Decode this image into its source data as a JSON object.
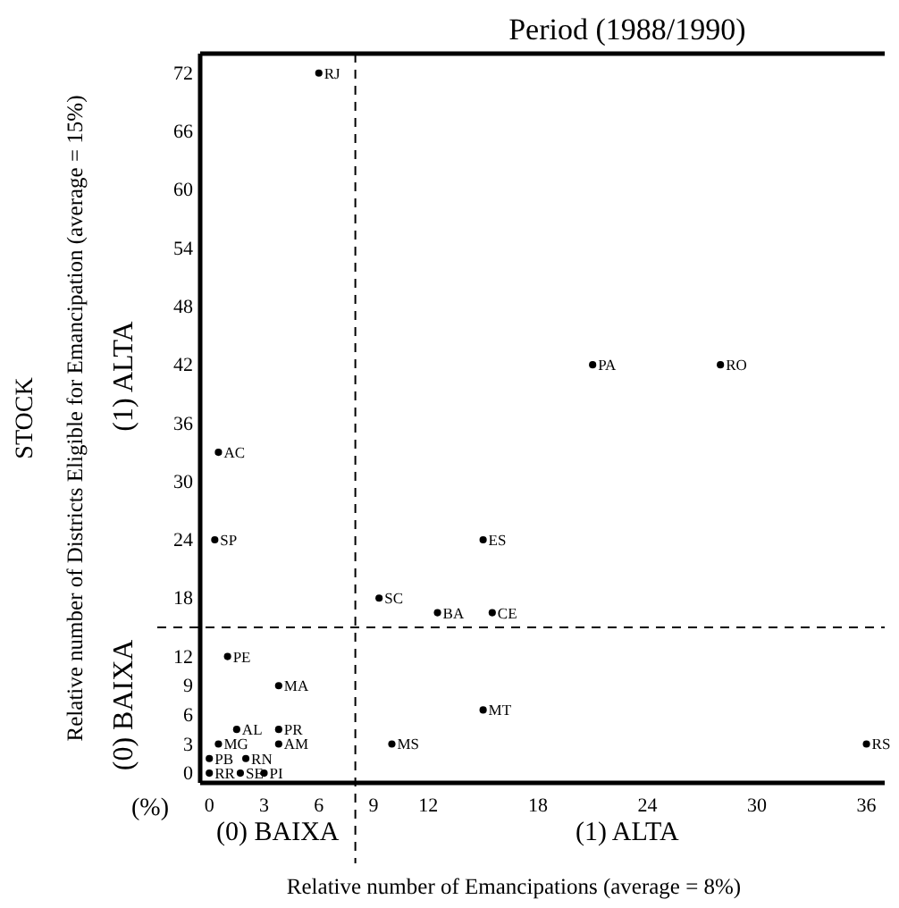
{
  "chart_data": {
    "type": "scatter",
    "title": "Period (1988/1990)",
    "xlabel": "Relative number of Emancipations (average = 8%)",
    "ylabel": "Relative number of Districts Eligible for Emancipation (average = 15%)",
    "xlim": [
      -0.5,
      37
    ],
    "ylim": [
      -1,
      74
    ],
    "xticks": [
      0,
      3,
      6,
      9,
      12,
      18,
      24,
      30,
      36
    ],
    "yticks": [
      0,
      3,
      6,
      9,
      12,
      18,
      24,
      30,
      36,
      42,
      48,
      54,
      60,
      66,
      72
    ],
    "series": [
      {
        "color": "#000000",
        "x": [
          6,
          0.5,
          0.3,
          1,
          3.8,
          1.5,
          3.8,
          0.5,
          3.8,
          10,
          0,
          2,
          0,
          1.7,
          3,
          9.3,
          12.5,
          15.5,
          15,
          15,
          36,
          21,
          28
        ],
        "values": [
          72,
          33,
          24,
          12,
          9,
          4.5,
          4.5,
          3,
          3,
          3,
          1.5,
          1.5,
          0,
          0,
          0,
          18,
          16.5,
          16.5,
          24,
          6.5,
          3,
          42,
          42
        ],
        "value_labels": [
          "RJ",
          "AC",
          "SP",
          "PE",
          "MA",
          "AL",
          "PR",
          "MG",
          "AM",
          "MS",
          "PB",
          "RN",
          "RR",
          "SE",
          "PI",
          "SC",
          "BA",
          "CE",
          "ES",
          "MT",
          "RS",
          "PA",
          "RO"
        ]
      }
    ],
    "marker": "circle",
    "ref_lines": [
      {
        "axis": "x",
        "value": 8,
        "label": null,
        "line_style": "dashed"
      },
      {
        "axis": "y",
        "value": 15,
        "label": null,
        "line_style": "dashed"
      }
    ],
    "annotations": [
      "(1) ALTA",
      "(0) BAIXA",
      "(0) BAIXA",
      "(1) ALTA",
      "(%)",
      "STOCK"
    ]
  }
}
